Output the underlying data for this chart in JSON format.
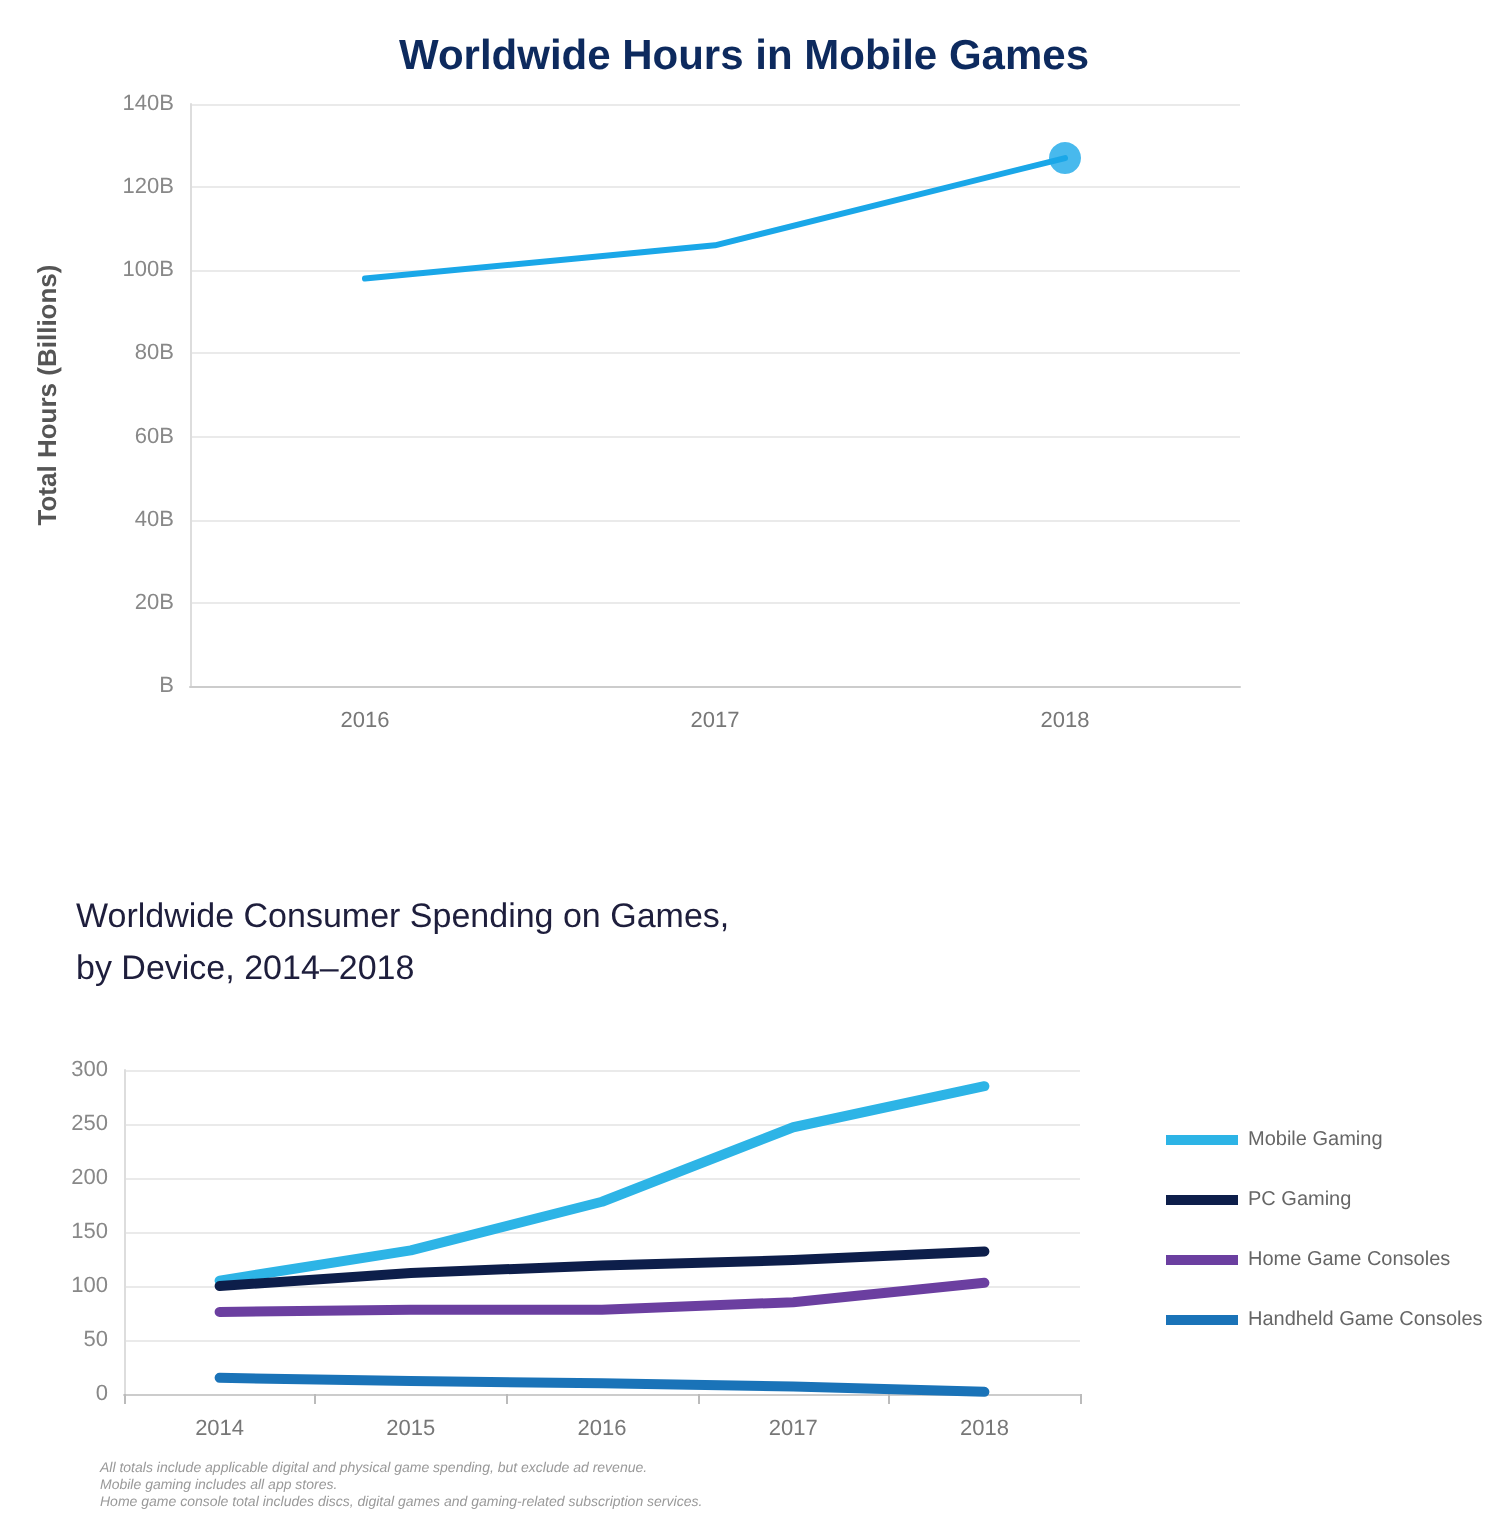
{
  "chart_data": [
    {
      "type": "line",
      "title": "Worldwide Hours in Mobile Games",
      "ylabel": "Total Hours (Billions)",
      "categories": [
        "2016",
        "2017",
        "2018"
      ],
      "series": [
        {
          "color": "#1aa7e8",
          "values": [
            98,
            106,
            127
          ]
        },
        {
          "type": "scatter",
          "color": "#1aa7e8",
          "values": [
            null,
            null,
            127
          ]
        }
      ],
      "ylim": [
        0,
        140
      ],
      "yticks": [
        {
          "value": 0,
          "label": "B"
        },
        {
          "value": 20,
          "label": "20B"
        },
        {
          "value": 40,
          "label": "40B"
        },
        {
          "value": 60,
          "label": "60B"
        },
        {
          "value": 80,
          "label": "80B"
        },
        {
          "value": 100,
          "label": "100B"
        },
        {
          "value": 120,
          "label": "120B"
        },
        {
          "value": 140,
          "label": "140B"
        }
      ],
      "grid": "y",
      "line_style": "solid"
    },
    {
      "type": "line",
      "title": "Worldwide Consumer Spending on Games,\nby Device, 2014–2018",
      "categories": [
        "2014",
        "2015",
        "2016",
        "2017",
        "2018"
      ],
      "series": [
        {
          "name": "Mobile Gaming",
          "color": "#2db4e6",
          "values": [
            105,
            133,
            178,
            247,
            285
          ]
        },
        {
          "name": "PC Gaming",
          "color": "#0d1e4a",
          "values": [
            100,
            112,
            119,
            124,
            132
          ]
        },
        {
          "name": "Home Game Consoles",
          "color": "#6b3fa0",
          "values": [
            76,
            78,
            78,
            85,
            103
          ]
        },
        {
          "name": "Handheld Game Consoles",
          "color": "#1a73b8",
          "values": [
            15,
            12,
            10,
            7,
            2
          ]
        }
      ],
      "ylim": [
        0,
        300
      ],
      "yticks": [
        0,
        50,
        100,
        150,
        200,
        250,
        300
      ],
      "grid": "y",
      "legend": "right",
      "line_style": "solid",
      "annotations": [
        "All totals include applicable digital and physical game spending, but exclude ad revenue.",
        "Mobile gaming includes all app stores.",
        "Home game console total includes discs, digital games and gaming-related subscription services."
      ]
    }
  ]
}
